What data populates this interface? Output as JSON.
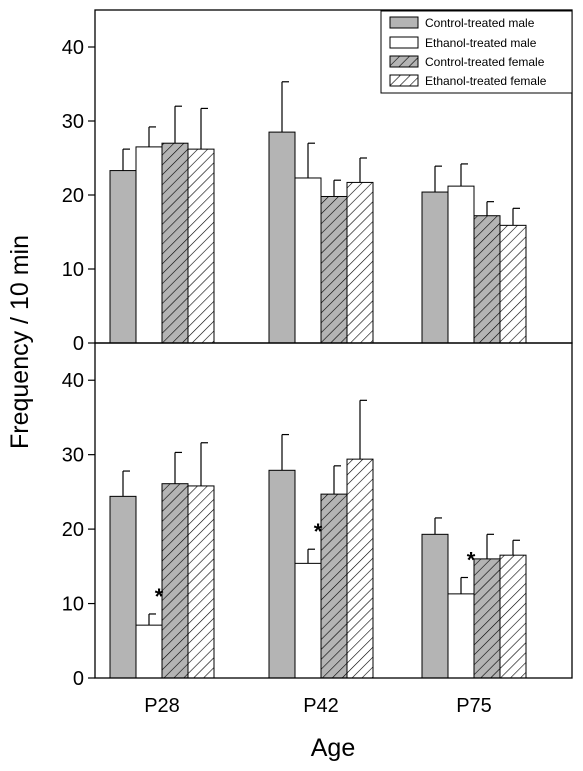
{
  "ylabel": "Frequency / 10 min",
  "xlabel": "Age",
  "legend_placement": "top-right",
  "legend": [
    {
      "name": "Control-treated male",
      "fill": "#b4b4b4",
      "pattern": "solid"
    },
    {
      "name": "Ethanol-treated male",
      "fill": "#ffffff",
      "pattern": "solid"
    },
    {
      "name": "Control-treated female",
      "fill": "#b4b4b4",
      "pattern": "hatch"
    },
    {
      "name": "Ethanol-treated female",
      "fill": "#ffffff",
      "pattern": "hatch"
    }
  ],
  "chart_data": [
    {
      "type": "bar",
      "panel": "top",
      "categories": [
        "P28",
        "P42",
        "P75"
      ],
      "ylim": [
        0,
        45
      ],
      "yticks": [
        0,
        10,
        20,
        30,
        40
      ],
      "grid": false,
      "series": [
        {
          "name": "Control-treated male",
          "values": [
            23.3,
            28.5,
            20.4
          ],
          "errors": [
            2.9,
            6.8,
            3.5
          ]
        },
        {
          "name": "Ethanol-treated male",
          "values": [
            26.5,
            22.3,
            21.2
          ],
          "errors": [
            2.7,
            4.7,
            3.0
          ]
        },
        {
          "name": "Control-treated female",
          "values": [
            27.0,
            19.8,
            17.2
          ],
          "errors": [
            5.0,
            2.2,
            1.9
          ]
        },
        {
          "name": "Ethanol-treated female",
          "values": [
            26.2,
            21.7,
            15.9
          ],
          "errors": [
            5.5,
            3.3,
            2.3
          ]
        }
      ],
      "annotations": []
    },
    {
      "type": "bar",
      "panel": "bottom",
      "categories": [
        "P28",
        "P42",
        "P75"
      ],
      "ylim": [
        0,
        45
      ],
      "yticks": [
        0,
        10,
        20,
        30,
        40
      ],
      "grid": false,
      "series": [
        {
          "name": "Control-treated male",
          "values": [
            24.4,
            27.9,
            19.3
          ],
          "errors": [
            3.4,
            4.8,
            2.2
          ]
        },
        {
          "name": "Ethanol-treated male",
          "values": [
            7.1,
            15.4,
            11.3
          ],
          "errors": [
            1.5,
            1.9,
            2.2
          ]
        },
        {
          "name": "Control-treated female",
          "values": [
            26.1,
            24.7,
            16.0
          ],
          "errors": [
            4.2,
            3.8,
            3.3
          ]
        },
        {
          "name": "Ethanol-treated female",
          "values": [
            25.8,
            29.4,
            16.5
          ],
          "errors": [
            5.8,
            7.9,
            2.0
          ]
        }
      ],
      "annotations": [
        {
          "text": "*",
          "category": "P28",
          "series": "Ethanol-treated male"
        },
        {
          "text": "*",
          "category": "P42",
          "series": "Ethanol-treated male"
        },
        {
          "text": "*",
          "category": "P75",
          "series": "Ethanol-treated male"
        }
      ]
    }
  ]
}
